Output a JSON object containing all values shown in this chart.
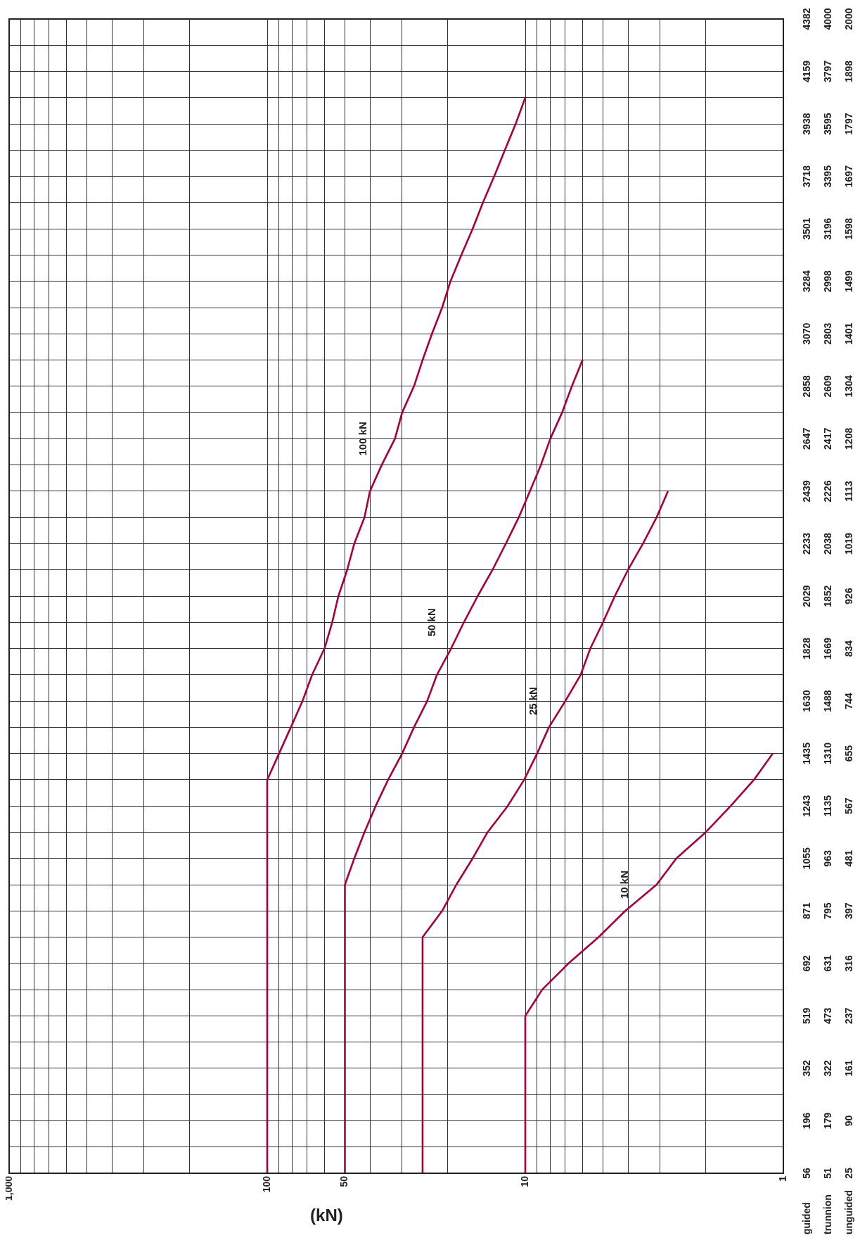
{
  "chart_data": {
    "type": "line",
    "orientation": "horizontal",
    "xlabel": "(kN)",
    "ylabel": "guided\ntrunnion\nunguided",
    "categories": [
      "4382\n4000\n2000",
      null,
      "4159\n3797\n1898",
      null,
      "3938\n3595\n1797",
      null,
      "3718\n3395\n1697",
      null,
      "3501\n3196\n1598",
      null,
      "3284\n2998\n1499",
      null,
      "3070\n2803\n1401",
      null,
      "2858\n2609\n1304",
      null,
      "2647\n2417\n1208",
      null,
      "2439\n2226\n1113",
      null,
      "2233\n2038\n1019",
      null,
      "2029\n1852\n926",
      null,
      "1828\n1669\n834",
      null,
      "1630\n1488\n744",
      null,
      "1435\n1310\n655",
      null,
      "1243\n1135\n567",
      null,
      "1055\n963\n481",
      null,
      "871\n795\n397",
      null,
      "692\n631\n316",
      null,
      "519\n473\n237",
      null,
      "352\n322\n161",
      null,
      "196\n179\n90",
      null,
      "56\n51\n25"
    ],
    "series": [
      {
        "name": "100 kN",
        "color": "#a8003c",
        "values": [
          null,
          null,
          null,
          10,
          10.9,
          12,
          13.2,
          14.6,
          16,
          17.7,
          19.5,
          21,
          23,
          25,
          27,
          30,
          32,
          36,
          40,
          42,
          46,
          49,
          53,
          56,
          60,
          67,
          73,
          81,
          90,
          100,
          100,
          100,
          100,
          100,
          100,
          100,
          100,
          100,
          100,
          100,
          100,
          100,
          100,
          100,
          100
        ]
      },
      {
        "name": "50 kN",
        "color": "#a8003c",
        "values": [
          null,
          null,
          null,
          null,
          null,
          null,
          null,
          null,
          null,
          null,
          null,
          null,
          null,
          6.0,
          6.6,
          7.2,
          8.0,
          8.7,
          9.6,
          10.6,
          11.9,
          13.4,
          15.3,
          17.3,
          19.4,
          22,
          24,
          27,
          30,
          34,
          38,
          42,
          46,
          50,
          50,
          50,
          50,
          50,
          50,
          50,
          50,
          50,
          50,
          50,
          50
        ]
      },
      {
        "name": "25 kN",
        "color": "#a8003c",
        "values": [
          null,
          null,
          null,
          null,
          null,
          null,
          null,
          null,
          null,
          null,
          null,
          null,
          null,
          null,
          null,
          null,
          null,
          null,
          2.8,
          3.1,
          3.5,
          4.0,
          4.5,
          5.0,
          5.6,
          6.1,
          7.0,
          8.1,
          9.0,
          10.1,
          11.7,
          14,
          16,
          18.5,
          21,
          25,
          25,
          25,
          25,
          25,
          25,
          25,
          25,
          25,
          25
        ]
      },
      {
        "name": "10 kN",
        "color": "#a8003c",
        "values": [
          null,
          null,
          null,
          null,
          null,
          null,
          null,
          null,
          null,
          null,
          null,
          null,
          null,
          null,
          null,
          null,
          null,
          null,
          null,
          null,
          null,
          null,
          null,
          null,
          null,
          null,
          null,
          null,
          1.1,
          1.3,
          1.6,
          2.0,
          2.6,
          3.1,
          4.1,
          5.2,
          6.8,
          8.6,
          10,
          10,
          10,
          10,
          10,
          10,
          10
        ]
      }
    ],
    "xlim": [
      1000,
      1
    ],
    "log": "x",
    "grid": true,
    "xticks": [
      {
        "value": 1000,
        "label": "1,000"
      },
      {
        "value": 900,
        "label": null
      },
      {
        "value": 800,
        "label": null
      },
      {
        "value": 700,
        "label": null
      },
      {
        "value": 600,
        "label": null
      },
      {
        "value": 500,
        "label": null
      },
      {
        "value": 400,
        "label": null
      },
      {
        "value": 300,
        "label": null
      },
      {
        "value": 200,
        "label": null
      },
      100,
      {
        "value": 90,
        "label": null
      },
      {
        "value": 80,
        "label": null
      },
      {
        "value": 70,
        "label": null
      },
      {
        "value": 60,
        "label": null
      },
      50,
      {
        "value": 40,
        "label": null
      },
      {
        "value": 30,
        "label": null
      },
      {
        "value": 20,
        "label": null
      },
      10,
      {
        "value": 9,
        "label": null
      },
      {
        "value": 8,
        "label": null
      },
      {
        "value": 7,
        "label": null
      },
      {
        "value": 6,
        "label": null
      },
      {
        "value": 5,
        "label": null
      },
      {
        "value": 4,
        "label": null
      },
      {
        "value": 3,
        "label": null
      },
      {
        "value": 2,
        "label": null
      },
      1
    ]
  }
}
